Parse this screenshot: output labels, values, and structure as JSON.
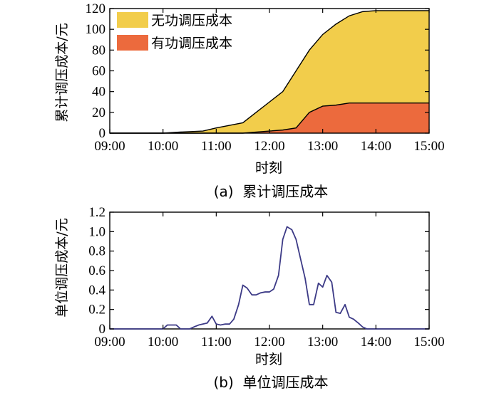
{
  "chart_data": [
    {
      "type": "area",
      "caption": "(a)  累计调压成本",
      "xlabel": "时刻",
      "ylabel": "累计调压成本/元",
      "x_ticks": [
        "09:00",
        "10:00",
        "11:00",
        "12:00",
        "13:00",
        "14:00",
        "15:00"
      ],
      "y_ticks": [
        0,
        20,
        40,
        60,
        80,
        100,
        120
      ],
      "xlim": [
        9,
        15
      ],
      "ylim": [
        0,
        120
      ],
      "stacked": true,
      "legend_position": "top-left",
      "series": [
        {
          "name": "无功调压成本",
          "color": "#f2cd4b",
          "note": "top boundary = cumulative total cost",
          "x": [
            9.0,
            10.0,
            10.3,
            10.75,
            11.0,
            11.5,
            11.75,
            12.0,
            12.25,
            12.5,
            12.75,
            13.0,
            13.25,
            13.5,
            13.75,
            14.0,
            15.0
          ],
          "values": [
            0,
            0,
            1,
            2,
            5,
            10,
            20,
            30,
            40,
            60,
            80,
            95,
            105,
            113,
            117,
            118,
            118
          ]
        },
        {
          "name": "有功调压成本",
          "color": "#ec6a3d",
          "x": [
            9.0,
            11.5,
            12.0,
            12.25,
            12.5,
            12.75,
            13.0,
            13.25,
            13.5,
            14.0,
            15.0
          ],
          "values": [
            0,
            0,
            2,
            3,
            5,
            20,
            26,
            27,
            29,
            29,
            29
          ]
        }
      ]
    },
    {
      "type": "line",
      "caption": "(b)  单位调压成本",
      "xlabel": "时刻",
      "ylabel": "单位调压成本/元",
      "x_ticks": [
        "09:00",
        "10:00",
        "11:00",
        "12:00",
        "13:00",
        "14:00",
        "15:00"
      ],
      "y_ticks": [
        "0",
        "0.2",
        "0.4",
        "0.6",
        "0.8",
        "1.0",
        "1.2"
      ],
      "xlim": [
        9,
        15
      ],
      "ylim": [
        0,
        1.2
      ],
      "series": [
        {
          "name": "",
          "color": "#3c3a86",
          "x": [
            9.0,
            10.0,
            10.08,
            10.17,
            10.25,
            10.33,
            10.42,
            10.5,
            10.58,
            10.67,
            10.75,
            10.83,
            10.92,
            11.0,
            11.08,
            11.17,
            11.25,
            11.33,
            11.42,
            11.5,
            11.58,
            11.67,
            11.75,
            11.83,
            11.92,
            12.0,
            12.08,
            12.17,
            12.25,
            12.33,
            12.42,
            12.5,
            12.58,
            12.67,
            12.75,
            12.83,
            12.92,
            13.0,
            13.08,
            13.17,
            13.25,
            13.33,
            13.42,
            13.5,
            13.58,
            13.67,
            13.75,
            13.83,
            13.92,
            14.0,
            15.0
          ],
          "values": [
            0,
            0,
            0.04,
            0.04,
            0.04,
            0.0,
            0.0,
            0.0,
            0.02,
            0.04,
            0.05,
            0.06,
            0.13,
            0.05,
            0.04,
            0.05,
            0.05,
            0.1,
            0.25,
            0.45,
            0.42,
            0.35,
            0.35,
            0.37,
            0.38,
            0.38,
            0.41,
            0.55,
            0.92,
            1.05,
            1.02,
            0.92,
            0.73,
            0.52,
            0.25,
            0.25,
            0.47,
            0.43,
            0.55,
            0.48,
            0.17,
            0.16,
            0.25,
            0.12,
            0.1,
            0.06,
            0.02,
            0.0,
            0.0,
            0.0,
            0.0
          ]
        }
      ]
    }
  ]
}
